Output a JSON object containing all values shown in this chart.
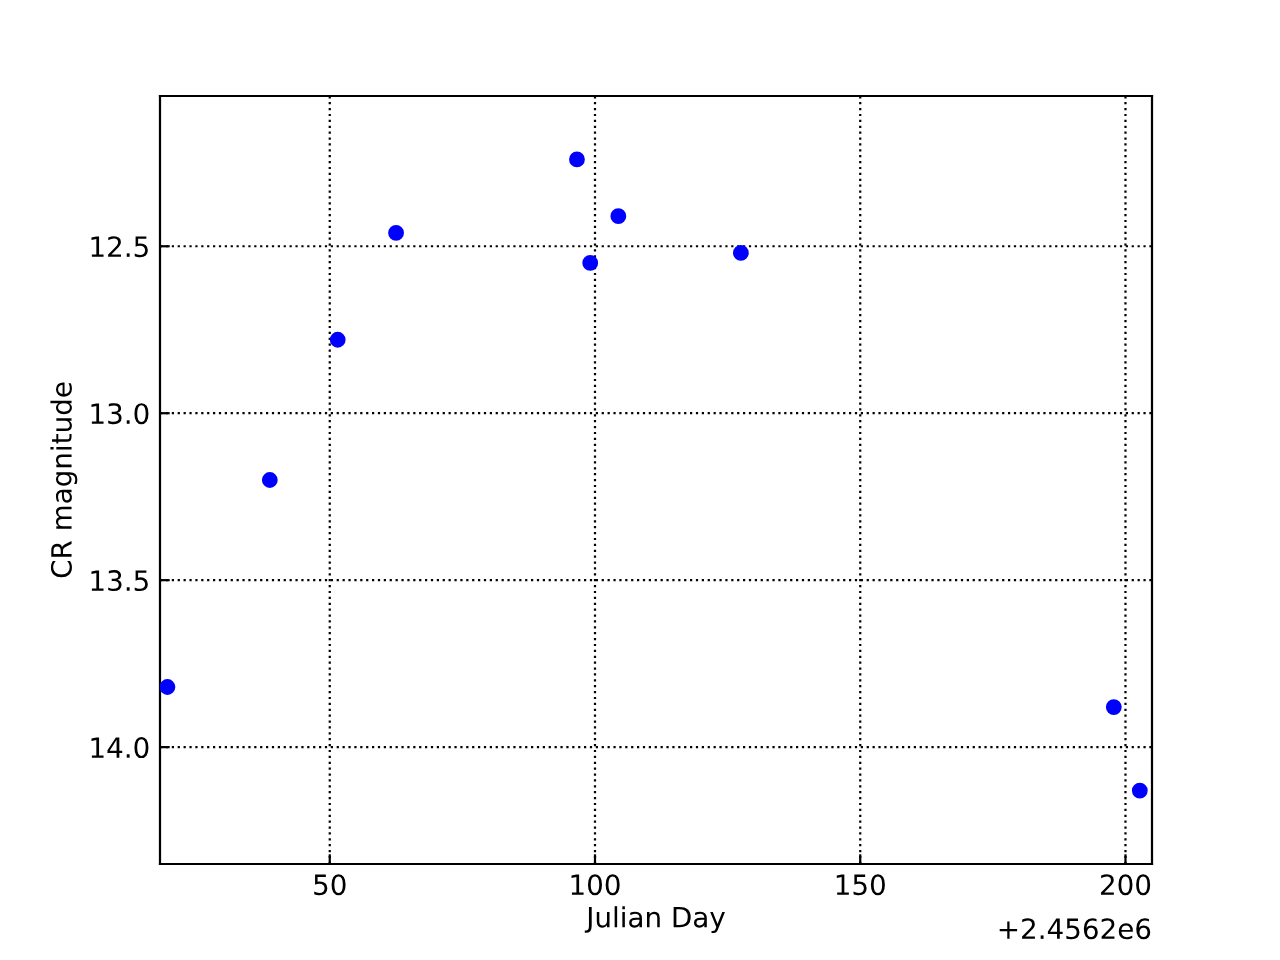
{
  "chart_data": {
    "type": "scatter",
    "xlabel": "Julian Day",
    "ylabel": "CR magnitude",
    "x": [
      19.4,
      38.7,
      51.5,
      62.5,
      96.6,
      99.1,
      104.4,
      127.5,
      197.8,
      202.7
    ],
    "series": [
      {
        "color": "#0000ff",
        "values": [
          13.82,
          13.2,
          12.78,
          12.46,
          12.24,
          12.55,
          12.41,
          12.52,
          13.88,
          14.13
        ]
      }
    ],
    "xlim": [
      18,
      205
    ],
    "xticks": [
      50,
      100,
      150,
      200
    ],
    "ylim": [
      14.35,
      12.05
    ],
    "yticks": [
      {
        "value": 12.5,
        "label": "12.5"
      },
      {
        "value": 13.0,
        "label": "13.0"
      },
      {
        "value": 13.5,
        "label": "13.5"
      },
      {
        "value": 14.0,
        "label": "14.0"
      }
    ],
    "annotations": [
      "+2.4562e6"
    ],
    "grid": true,
    "marker": "circle",
    "legend": false
  }
}
